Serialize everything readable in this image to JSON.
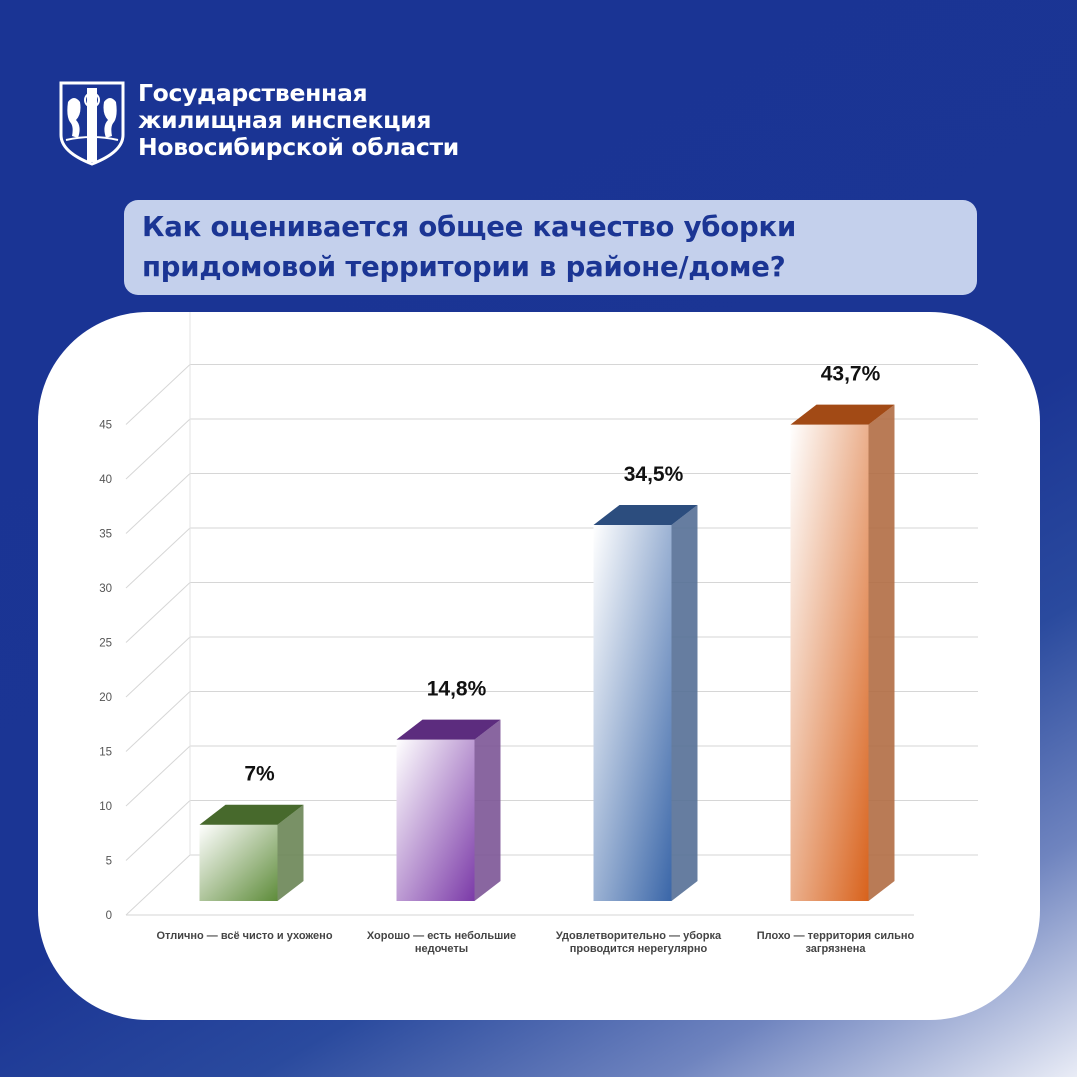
{
  "header": {
    "org_line1": "Государственная",
    "org_line2": "жилищная инспекция",
    "org_line3": "Новосибирской области",
    "logo_icon": "coat-of-arms-icon"
  },
  "question": {
    "line1": "Как оценивается общее качество уборки",
    "line2": "придомовой территории в районе/доме?"
  },
  "colors": {
    "background": "#1b3594",
    "question_bg": "#c4d0ec",
    "question_text": "#1b3594"
  },
  "chart_data": {
    "type": "bar",
    "categories": [
      [
        "Отлично — всё чисто и ухожено"
      ],
      [
        "Хорошо — есть небольшие",
        "недочеты"
      ],
      [
        "Удовлетворительно — уборка",
        "проводится нерегулярно"
      ],
      [
        "Плохо — территория сильно",
        "загрязнена"
      ]
    ],
    "values": [
      7,
      14.8,
      34.5,
      43.7
    ],
    "value_labels": [
      "7%",
      "14,8%",
      "34,5%",
      "43,7%"
    ],
    "colors": [
      "#5e8c3a",
      "#7b3aa8",
      "#3a66a8",
      "#d8621c"
    ],
    "yticks": [
      0,
      5,
      10,
      15,
      20,
      25,
      30,
      35,
      40,
      45
    ],
    "ylim": [
      0,
      45
    ],
    "grid": true,
    "style": "3d"
  }
}
